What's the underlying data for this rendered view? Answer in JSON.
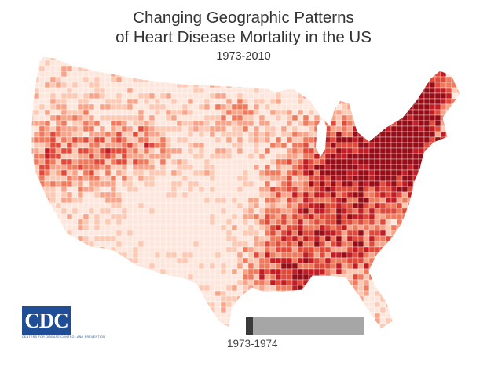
{
  "title": {
    "line1": "Changing Geographic Patterns",
    "line2": "of Heart Disease Mortality in the US"
  },
  "years": "1973-2010",
  "logo": {
    "name": "CDC",
    "subtitle": "CENTERS FOR DISEASE CONTROL AND PREVENTION"
  },
  "timeline": {
    "label": "1973-1974",
    "progress": 0.06
  },
  "colors": {
    "ramp": [
      "#fde7dd",
      "#fbc9b4",
      "#f7a58a",
      "#ef7b5e",
      "#e04a3a",
      "#c21d24",
      "#960d17"
    ],
    "timeline_track": "#a6a6a6",
    "timeline_fill": "#3a3a3a",
    "logo_blue": "#1f4e96",
    "title_text": "#333333"
  }
}
